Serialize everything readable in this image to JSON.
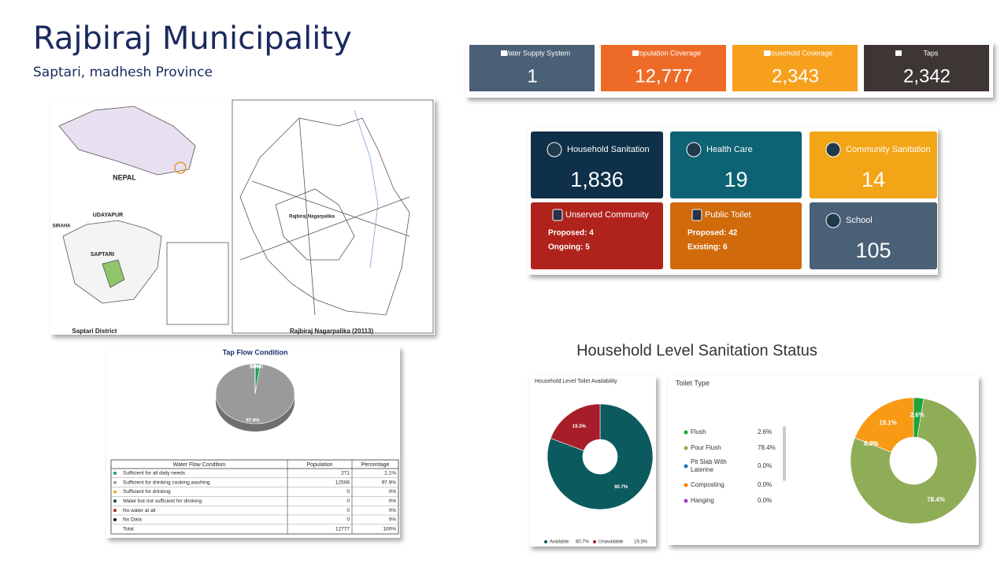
{
  "header": {
    "title": "Rajbiraj Municipality",
    "subtitle": "Saptari, madhesh Province"
  },
  "stats": [
    {
      "label": "Water Supply System",
      "value": "1",
      "color": "#4a6076"
    },
    {
      "label": "Population Coverage",
      "value": "12,777",
      "color": "#ee6b27"
    },
    {
      "label": "Household Coverage",
      "value": "2,343",
      "color": "#f6a01d"
    },
    {
      "label": "Taps",
      "value": "2,342",
      "color": "#3e3535"
    }
  ],
  "sanitation": [
    {
      "label": "Household Sanitation",
      "value": "1,836",
      "color": "#0e3049"
    },
    {
      "label": "Health Care",
      "value": "19",
      "color": "#0d6274"
    },
    {
      "label": "Community Sanitation",
      "value": "14",
      "color": "#f2a516"
    },
    {
      "label": "Unserved Community",
      "details": [
        "Proposed: 4",
        "Ongoing: 5"
      ],
      "color": "#b0231c"
    },
    {
      "label": "Public Toilet",
      "details": [
        "Proposed: 42",
        "Existing: 6"
      ],
      "color": "#d06a0b"
    },
    {
      "label": "School",
      "value": "105",
      "color": "#4a6076"
    }
  ],
  "map": {
    "labels": [
      "NEPAL",
      "UDAYAPUR",
      "SIRAHA",
      "SAPTARI",
      "Saptari District",
      "Rajbiraj Nagarpalika",
      "Rajbiraj Nagarpalika (20113)"
    ]
  },
  "section_title": "Household Level Sanitation Status",
  "chart_data": [
    {
      "type": "pie",
      "title": "Tap Flow Condition",
      "categories": [
        "Sufficient for all daily needs",
        "Sufficient for drinking cooking,washing",
        "Sufficient for drinking",
        "Water but not sufficient for drinking",
        "No water at all",
        "No Data"
      ],
      "values": [
        2.1,
        97.9,
        0,
        0,
        0,
        0
      ],
      "value_labels": [
        "2.1%",
        "97.9%",
        "0.0%",
        "0.0%",
        "0.0%",
        "0.0%"
      ],
      "colors": [
        "#1e9e57",
        "#9a9a9a",
        "#f5a623",
        "#0e4a52",
        "#b0231c",
        "#111111"
      ]
    },
    {
      "type": "donut",
      "title": "Household Level Toilet Availability",
      "categories": [
        "Available",
        "Unavailable"
      ],
      "values": [
        80.7,
        19.3
      ],
      "value_labels": [
        "80.7%",
        "19.3%"
      ],
      "colors": [
        "#0b5a5e",
        "#a81d2a"
      ]
    },
    {
      "type": "donut",
      "title": "Toilet Type",
      "categories": [
        "Flush",
        "Pour Flush",
        "Pit Slab With Laterine",
        "Composting",
        "Hanging",
        null
      ],
      "values": [
        2.6,
        78.4,
        0,
        0,
        0,
        19.1
      ],
      "value_labels": [
        "2.6%",
        "78.4%",
        "0.0%",
        "0.0%",
        "0.0%",
        "19.1%"
      ],
      "colors": [
        "#21a336",
        "#8fac57",
        "#1f77b4",
        "#ff7f0e",
        "#9b3fd1",
        "#f89a14"
      ]
    }
  ],
  "table": {
    "headers": [
      "Water Flow Condition",
      "Population",
      "Percentage"
    ],
    "rows": [
      [
        "Sufficient for all daily needs",
        "271",
        "2.1%"
      ],
      [
        "Sufficient for drinking cooking,washing",
        "12506",
        "97.9%"
      ],
      [
        "Sufficient for drinking",
        "0",
        "0%"
      ],
      [
        "Water but not sufficient for drinking",
        "0",
        "0%"
      ],
      [
        "No water at all",
        "0",
        "0%"
      ],
      [
        "No Data",
        "0",
        "0%"
      ],
      [
        "Total",
        "12777",
        "100%"
      ]
    ]
  }
}
